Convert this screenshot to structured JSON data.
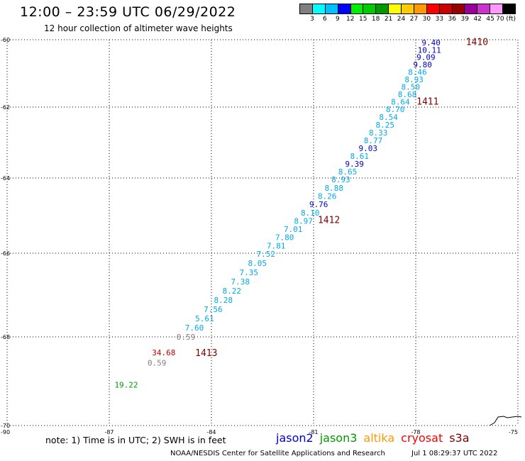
{
  "header": {
    "title": "12:00 – 23:59 UTC 06/29/2022",
    "subtitle": "12 hour collection of altimeter wave heights"
  },
  "legend": {
    "colors": [
      "#808080",
      "#00ffff",
      "#00bfff",
      "#0000ff",
      "#00ee00",
      "#00cc00",
      "#009900",
      "#ffff00",
      "#ffcc00",
      "#ff9900",
      "#ff0000",
      "#cc0000",
      "#990000",
      "#990099",
      "#cc33cc",
      "#ff99ff",
      "#000000"
    ],
    "labels": [
      "3",
      "6",
      "9",
      "12",
      "15",
      "18",
      "21",
      "24",
      "27",
      "30",
      "33",
      "36",
      "39",
      "42",
      "45",
      "70 (ft)"
    ]
  },
  "axes": {
    "x_ticks": [
      "-90",
      "-87",
      "-84",
      "-81",
      "-78",
      "-75"
    ],
    "y_ticks": [
      "-60",
      "-62",
      "-64",
      "-66",
      "-68",
      "-70"
    ]
  },
  "chart_data": {
    "type": "scatter",
    "title": "12:00 – 23:59 UTC 06/29/2022",
    "subtitle": "12 hour collection of altimeter wave heights",
    "units": "ft",
    "xlim": [
      -90,
      -75
    ],
    "ylim": [
      -70,
      -60
    ],
    "ytick_values": [
      -60,
      -62,
      -64,
      -66,
      -68,
      -70
    ],
    "xtick_values": [
      -90,
      -87,
      -84,
      -81,
      -78,
      -75
    ],
    "grid": true,
    "points": [
      {
        "lon": -77.55,
        "lat": -60.08,
        "label": "9.40",
        "color": "#0000cc"
      },
      {
        "lon": -77.6,
        "lat": -60.3,
        "label": "10.11",
        "color": "#0000cc"
      },
      {
        "lon": -77.7,
        "lat": -60.52,
        "label": "9.09",
        "color": "#0000cc"
      },
      {
        "lon": -77.8,
        "lat": -60.74,
        "label": "9.80",
        "color": "#0000cc"
      },
      {
        "lon": -77.95,
        "lat": -60.96,
        "label": "8.46",
        "color": "#00aaee"
      },
      {
        "lon": -78.05,
        "lat": -61.18,
        "label": "8.93",
        "color": "#00aaee"
      },
      {
        "lon": -78.15,
        "lat": -61.4,
        "label": "8.50",
        "color": "#00aaee"
      },
      {
        "lon": -78.25,
        "lat": -61.62,
        "label": "8.68",
        "color": "#00aaee"
      },
      {
        "lon": -78.45,
        "lat": -61.84,
        "label": "8.64",
        "color": "#00aaee"
      },
      {
        "lon": -78.6,
        "lat": -62.06,
        "label": "8.70",
        "color": "#00aaee"
      },
      {
        "lon": -78.8,
        "lat": -62.28,
        "label": "8.54",
        "color": "#00aaee"
      },
      {
        "lon": -78.9,
        "lat": -62.5,
        "label": "8.25",
        "color": "#00aaee"
      },
      {
        "lon": -79.1,
        "lat": -62.72,
        "label": "8.33",
        "color": "#00aaee"
      },
      {
        "lon": -79.25,
        "lat": -62.94,
        "label": "8.77",
        "color": "#00aaee"
      },
      {
        "lon": -79.4,
        "lat": -63.16,
        "label": "9.03",
        "color": "#0000cc"
      },
      {
        "lon": -79.65,
        "lat": -63.38,
        "label": "8.61",
        "color": "#00aaee"
      },
      {
        "lon": -79.8,
        "lat": -63.6,
        "label": "9.39",
        "color": "#0000cc"
      },
      {
        "lon": -80.0,
        "lat": -63.82,
        "label": "8.65",
        "color": "#00aaee"
      },
      {
        "lon": -80.2,
        "lat": -64.04,
        "label": "8.93",
        "color": "#00aaee"
      },
      {
        "lon": -80.4,
        "lat": -64.26,
        "label": "8.88",
        "color": "#00aaee"
      },
      {
        "lon": -80.6,
        "lat": -64.48,
        "label": "8.26",
        "color": "#00aaee"
      },
      {
        "lon": -80.85,
        "lat": -64.7,
        "label": "9.76",
        "color": "#0000cc"
      },
      {
        "lon": -81.1,
        "lat": -64.92,
        "label": "8.10",
        "color": "#00aaee"
      },
      {
        "lon": -81.3,
        "lat": -65.14,
        "label": "8.97",
        "color": "#00aaee"
      },
      {
        "lon": -81.6,
        "lat": -65.36,
        "label": "7.01",
        "color": "#00aaee"
      },
      {
        "lon": -81.85,
        "lat": -65.58,
        "label": "7.80",
        "color": "#00aaee"
      },
      {
        "lon": -82.1,
        "lat": -65.8,
        "label": "7.81",
        "color": "#00aaee"
      },
      {
        "lon": -82.4,
        "lat": -66.02,
        "label": "7.52",
        "color": "#00aaee"
      },
      {
        "lon": -82.65,
        "lat": -66.24,
        "label": "8.05",
        "color": "#00aaee"
      },
      {
        "lon": -82.9,
        "lat": -66.46,
        "label": "7.35",
        "color": "#00aaee"
      },
      {
        "lon": -83.15,
        "lat": -66.68,
        "label": "7.38",
        "color": "#00aaee"
      },
      {
        "lon": -83.4,
        "lat": -66.9,
        "label": "8.22",
        "color": "#00aaee"
      },
      {
        "lon": -83.65,
        "lat": -67.12,
        "label": "8.28",
        "color": "#00aaee"
      },
      {
        "lon": -83.95,
        "lat": -67.34,
        "label": "7.56",
        "color": "#00aaee"
      },
      {
        "lon": -84.2,
        "lat": -67.56,
        "label": "5.61",
        "color": "#00aaee"
      },
      {
        "lon": -84.5,
        "lat": -67.78,
        "label": "7.60",
        "color": "#00aaee"
      },
      {
        "lon": -84.75,
        "lat": -68.0,
        "label": "0.59",
        "color": "#808080"
      },
      {
        "lon": -85.4,
        "lat": -68.35,
        "label": "34.68",
        "color": "#cc0000"
      },
      {
        "lon": -85.6,
        "lat": -68.58,
        "label": "0.59",
        "color": "#808080"
      },
      {
        "lon": -86.5,
        "lat": -69.08,
        "label": "19.22",
        "color": "#009900"
      }
    ],
    "pass_labels": [
      {
        "lon": -76.2,
        "lat": -60.05,
        "label": "1410"
      },
      {
        "lon": -77.65,
        "lat": -61.82,
        "label": "1411"
      },
      {
        "lon": -80.55,
        "lat": -65.1,
        "label": "1412"
      },
      {
        "lon": -84.15,
        "lat": -68.35,
        "label": "1413"
      }
    ]
  },
  "footer": {
    "note": "note: 1) Time is in UTC; 2) SWH is in feet",
    "satellites": [
      {
        "name": "jason2",
        "color": "#0000cc"
      },
      {
        "name": "jason3",
        "color": "#009900"
      },
      {
        "name": "altika",
        "color": "#ff9900"
      },
      {
        "name": "cryosat",
        "color": "#ff0000"
      },
      {
        "name": "s3a",
        "color": "#800000"
      }
    ],
    "credit": "NOAA/NESDIS Center for Satellite Applications and Research",
    "datestamp": "Jul  1 08:29:37 UTC 2022"
  }
}
